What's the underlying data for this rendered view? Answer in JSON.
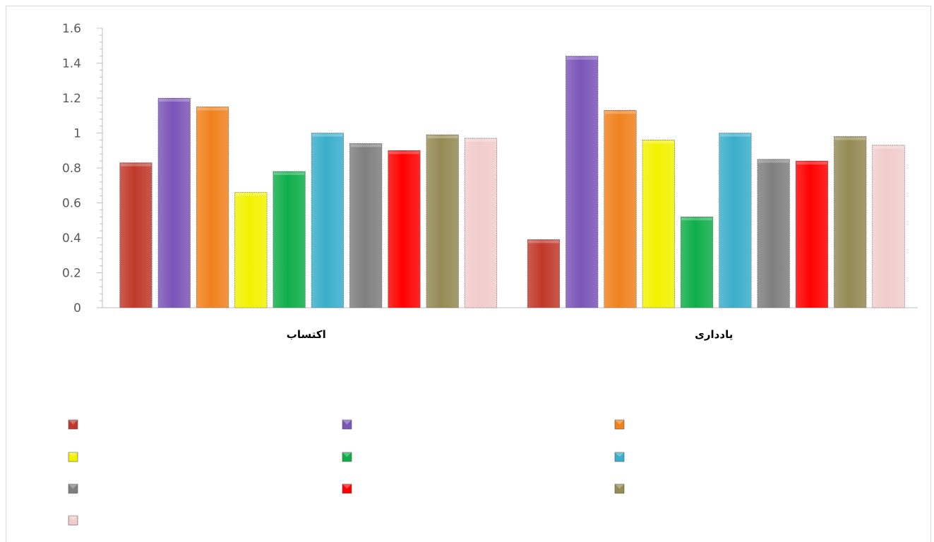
{
  "chart_data": {
    "type": "bar",
    "categories": [
      "اکتساب",
      "یادداری"
    ],
    "ylim": [
      0,
      1.6
    ],
    "yticks": [
      "0",
      "0.2",
      "0.4",
      "0.6",
      "0.8",
      "1",
      "1.2",
      "1.4",
      "1.6"
    ],
    "grid": false,
    "legend_position": "bottom",
    "series": [
      {
        "values": [
          0.83,
          0.39
        ],
        "color": "#c0392b"
      },
      {
        "values": [
          1.2,
          1.44
        ],
        "color": "#7b55b8"
      },
      {
        "values": [
          1.15,
          1.13
        ],
        "color": "#f0821e"
      },
      {
        "values": [
          0.66,
          0.96
        ],
        "color": "#f2f200"
      },
      {
        "values": [
          0.78,
          0.52
        ],
        "color": "#0fae4a"
      },
      {
        "values": [
          1.0,
          1.0
        ],
        "color": "#3aaecb"
      },
      {
        "values": [
          0.94,
          0.85
        ],
        "color": "#7f7f7f"
      },
      {
        "values": [
          0.9,
          0.84
        ],
        "color": "#ff0000"
      },
      {
        "values": [
          0.99,
          0.98
        ],
        "color": "#948a54"
      },
      {
        "values": [
          0.97,
          0.93
        ],
        "color": "#f2cccc"
      }
    ]
  }
}
